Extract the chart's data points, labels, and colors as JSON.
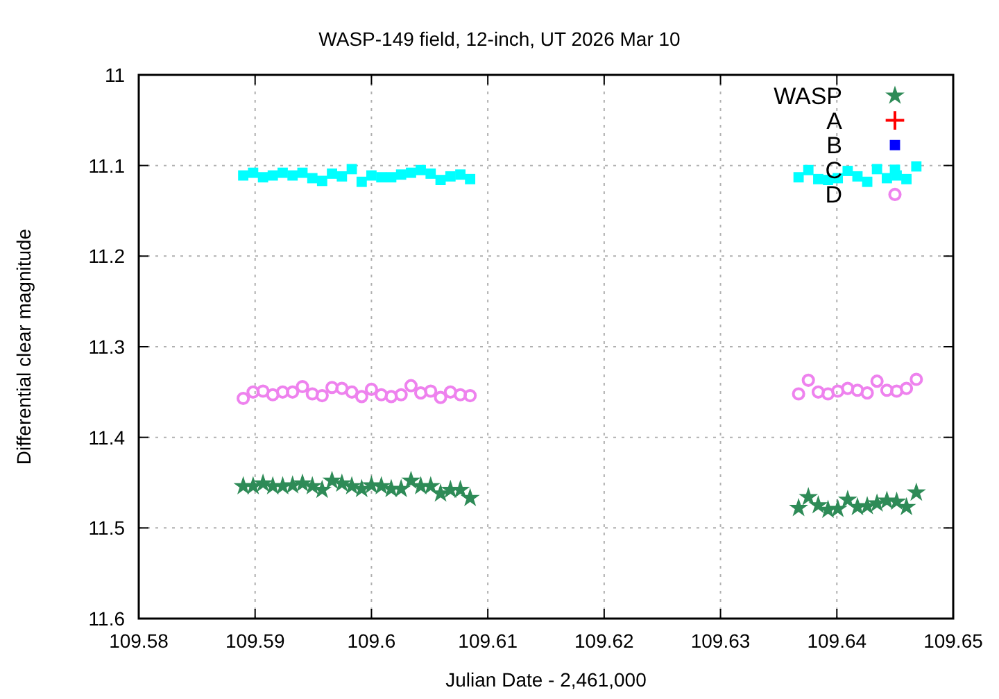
{
  "chart_data": {
    "type": "scatter",
    "title": "WASP-149 field, 12-inch, UT 2026 Mar 10",
    "xlabel": "Julian Date - 2,461,000",
    "ylabel": "Differential clear magnitude",
    "x": [
      109.58898,
      109.58983,
      109.59068,
      109.59152,
      109.59237,
      109.59322,
      109.59407,
      109.59492,
      109.59576,
      109.59661,
      109.59746,
      109.59831,
      109.59916,
      109.6,
      109.60085,
      109.6017,
      109.60255,
      109.6034,
      109.60424,
      109.60509,
      109.60594,
      109.60679,
      109.60764,
      109.60848,
      109.63671,
      109.63755,
      109.6384,
      109.63924,
      109.64008,
      109.64093,
      109.64177,
      109.64261,
      109.64345,
      109.6443,
      109.64514,
      109.64598,
      109.64683
    ],
    "series": [
      {
        "name": "WASP",
        "color": "#2e8b57",
        "marker": "star",
        "values": [
          11.454,
          11.454,
          11.451,
          11.454,
          11.454,
          11.453,
          11.451,
          11.454,
          11.458,
          11.448,
          11.451,
          11.454,
          11.457,
          11.453,
          11.454,
          11.457,
          11.457,
          11.448,
          11.454,
          11.454,
          11.462,
          11.458,
          11.458,
          11.467,
          11.478,
          11.466,
          11.475,
          11.48,
          11.479,
          11.469,
          11.477,
          11.476,
          11.473,
          11.47,
          11.471,
          11.477,
          11.461
        ]
      },
      {
        "name": "A",
        "color": "#ff0000",
        "marker": "cross",
        "values": [
          null,
          null,
          null,
          null,
          null,
          null,
          null,
          null,
          null,
          null,
          null,
          null,
          null,
          null,
          null,
          null,
          null,
          null,
          null,
          null,
          null,
          null,
          null,
          null,
          null,
          null,
          null,
          null,
          null,
          null,
          null,
          null,
          null,
          null,
          null,
          null,
          null
        ]
      },
      {
        "name": "B",
        "color": "#0000ff",
        "marker": "square",
        "values": [
          null,
          null,
          null,
          null,
          null,
          null,
          null,
          null,
          null,
          null,
          null,
          null,
          null,
          null,
          null,
          null,
          null,
          null,
          null,
          null,
          null,
          null,
          null,
          null,
          null,
          null,
          null,
          null,
          null,
          null,
          null,
          null,
          null,
          null,
          null,
          null,
          null
        ]
      },
      {
        "name": "C",
        "color": "#00ffff",
        "marker": "square",
        "values": [
          11.111,
          11.108,
          11.113,
          11.111,
          11.108,
          11.111,
          11.108,
          11.114,
          11.117,
          11.109,
          11.112,
          11.104,
          11.118,
          11.111,
          11.113,
          11.113,
          11.11,
          11.108,
          11.105,
          11.109,
          11.116,
          11.112,
          11.11,
          11.115,
          11.113,
          11.105,
          11.115,
          11.116,
          11.114,
          11.106,
          11.112,
          11.118,
          11.104,
          11.114,
          11.111,
          11.115,
          11.101
        ]
      },
      {
        "name": "D",
        "color": "#ee82ee",
        "marker": "circle",
        "values": [
          11.357,
          11.35,
          11.349,
          11.353,
          11.35,
          11.35,
          11.344,
          11.352,
          11.354,
          11.345,
          11.346,
          11.35,
          11.355,
          11.347,
          11.353,
          11.355,
          11.353,
          11.343,
          11.351,
          11.349,
          11.356,
          11.35,
          11.353,
          11.354,
          11.352,
          11.337,
          11.35,
          11.352,
          11.349,
          11.346,
          11.348,
          11.351,
          11.338,
          11.348,
          11.349,
          11.346,
          11.336
        ]
      }
    ],
    "xlim": [
      109.58,
      109.65
    ],
    "xticks": [
      109.58,
      109.59,
      109.6,
      109.61,
      109.62,
      109.63,
      109.64,
      109.65
    ],
    "ylim": [
      11.6,
      11
    ],
    "yticks": [
      11,
      11.1,
      11.2,
      11.3,
      11.4,
      11.5,
      11.6
    ],
    "grid": true,
    "legend": "top right"
  }
}
